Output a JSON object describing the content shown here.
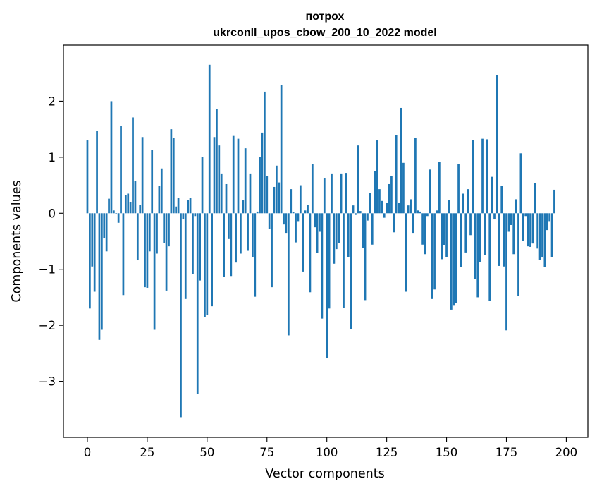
{
  "chart_data": {
    "type": "bar",
    "title": "потрох",
    "subtitle": "ukrconll_upos_cbow_200_10_2022 model",
    "xlabel": "Vector components",
    "ylabel": "Components values",
    "xlim": [
      -10,
      209
    ],
    "ylim": [
      -4,
      3
    ],
    "xticks": [
      0,
      25,
      50,
      75,
      100,
      125,
      150,
      175,
      200
    ],
    "yticks": [
      -3,
      -2,
      -1,
      0,
      1,
      2
    ],
    "ytick_labels": [
      "−3",
      "−2",
      "−1",
      "0",
      "1",
      "2"
    ],
    "grid": false,
    "bar_color": "#1f77b4",
    "values": [
      1.3,
      -1.7,
      -0.95,
      -1.4,
      1.47,
      -2.26,
      -2.08,
      -0.45,
      -0.68,
      0.26,
      2.0,
      0.05,
      0.0,
      -0.17,
      1.56,
      -1.46,
      0.33,
      0.35,
      0.2,
      1.71,
      0.57,
      -0.84,
      0.15,
      1.36,
      -1.32,
      -1.33,
      -0.68,
      1.13,
      -2.08,
      -0.72,
      0.49,
      0.8,
      -0.53,
      -1.38,
      -0.59,
      1.5,
      1.34,
      0.12,
      0.27,
      -3.64,
      -0.11,
      -1.53,
      0.24,
      0.28,
      -1.09,
      -0.05,
      -3.23,
      -1.2,
      1.01,
      -1.85,
      -1.82,
      2.65,
      -1.66,
      1.36,
      1.86,
      1.21,
      0.71,
      -1.13,
      0.52,
      -0.46,
      -1.12,
      1.38,
      -0.88,
      1.33,
      -0.72,
      0.23,
      1.16,
      -0.67,
      0.71,
      -0.78,
      -1.49,
      0.03,
      1.01,
      1.44,
      2.17,
      0.67,
      -0.28,
      -1.32,
      0.47,
      0.85,
      0.55,
      2.29,
      -0.2,
      -0.35,
      -2.18,
      0.43,
      0.02,
      -0.52,
      -0.14,
      0.5,
      -1.04,
      0.05,
      0.15,
      -1.41,
      0.88,
      -0.25,
      -0.71,
      -0.33,
      -1.88,
      0.62,
      -2.59,
      -1.7,
      0.71,
      -0.9,
      -0.64,
      -0.53,
      0.71,
      -1.69,
      0.72,
      -0.78,
      -2.07,
      0.14,
      -0.03,
      1.21,
      0.04,
      -0.62,
      -1.55,
      -0.13,
      0.36,
      -0.56,
      0.75,
      1.3,
      0.43,
      0.22,
      -0.08,
      0.18,
      0.52,
      0.67,
      -0.34,
      1.4,
      0.18,
      1.88,
      0.9,
      -1.4,
      0.14,
      0.25,
      -0.35,
      1.34,
      0.05,
      0.03,
      -0.56,
      -0.73,
      -0.05,
      0.78,
      -1.53,
      -1.36,
      0.05,
      0.91,
      -0.82,
      -0.57,
      -0.78,
      0.23,
      -1.72,
      -1.65,
      -1.6,
      0.88,
      -0.96,
      0.35,
      -0.7,
      0.43,
      -0.39,
      1.31,
      -1.17,
      -1.5,
      -0.87,
      1.33,
      -0.74,
      1.32,
      -1.57,
      0.65,
      -0.11,
      2.47,
      -0.94,
      0.49,
      -0.95,
      -2.09,
      -0.33,
      -0.21,
      -0.73,
      0.25,
      -1.48,
      1.07,
      -0.5,
      -0.05,
      -0.59,
      -0.6,
      -0.54,
      0.54,
      -0.63,
      -0.83,
      -0.79,
      -0.96,
      -0.3,
      -0.14,
      -0.78,
      0.42
    ]
  }
}
